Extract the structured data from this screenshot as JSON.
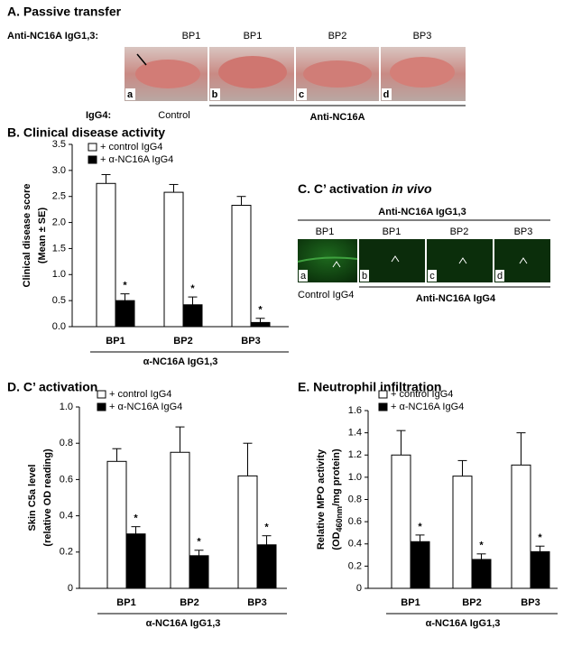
{
  "panel_a": {
    "title": "A. Passive transfer",
    "row_label": "Anti-NC16A IgG1,3:",
    "columns": [
      "BP1",
      "BP1",
      "BP2",
      "BP3"
    ],
    "letters": [
      "a",
      "b",
      "c",
      "d"
    ],
    "igg4_label": "IgG4:",
    "control": "Control",
    "group": "Anti-NC16A"
  },
  "panel_c": {
    "title": "C. C’ activation",
    "title_italic": "in vivo",
    "header": "Anti-NC16A IgG1,3",
    "columns": [
      "BP1",
      "BP1",
      "BP2",
      "BP3"
    ],
    "letters": [
      "a",
      "b",
      "c",
      "d"
    ],
    "control": "Control IgG4",
    "group": "Anti-NC16A IgG4"
  },
  "chart_data": [
    {
      "type": "bar",
      "title": "B. Clinical disease activity",
      "y_label": [
        "Clinical disease score",
        "(Mean ± SE)"
      ],
      "x_label": "α-NC16A IgG1,3",
      "categories": [
        "BP1",
        "BP2",
        "BP3"
      ],
      "series": [
        {
          "name": "+ control IgG4",
          "color": "#ffffff",
          "values": [
            2.75,
            2.58,
            2.33
          ],
          "errors": [
            0.17,
            0.15,
            0.17
          ]
        },
        {
          "name": "+ α-NC16A IgG4",
          "color": "#000000",
          "values": [
            0.5,
            0.42,
            0.08
          ],
          "errors": [
            0.13,
            0.15,
            0.08
          ],
          "annotations": [
            "*",
            "*",
            "*"
          ]
        }
      ],
      "ylim": [
        0,
        3.5
      ],
      "yticks": [
        {
          "value": 0,
          "label": "0.0"
        },
        0.5,
        {
          "value": 1,
          "label": "1.0"
        },
        1.5,
        {
          "value": 2,
          "label": "2.0"
        },
        2.5,
        {
          "value": 3,
          "label": "3.0"
        },
        3.5
      ]
    },
    {
      "type": "bar",
      "title": "D. C’ activation",
      "y_label": [
        "Skin C5a level",
        "(relative OD reading)"
      ],
      "x_label": "α-NC16A IgG1,3",
      "categories": [
        "BP1",
        "BP2",
        "BP3"
      ],
      "series": [
        {
          "name": "+ control IgG4",
          "color": "#ffffff",
          "values": [
            0.7,
            0.75,
            0.62
          ],
          "errors": [
            0.07,
            0.14,
            0.18
          ]
        },
        {
          "name": "+ α-NC16A IgG4",
          "color": "#000000",
          "values": [
            0.3,
            0.18,
            0.24
          ],
          "errors": [
            0.04,
            0.03,
            0.05
          ],
          "annotations": [
            "*",
            "*",
            "*"
          ]
        }
      ],
      "ylim": [
        0,
        1
      ],
      "yticks": [
        0,
        0.2,
        0.4,
        0.6,
        0.8,
        {
          "value": 1,
          "label": "1.0"
        }
      ]
    },
    {
      "type": "bar",
      "title": "E. Neutrophil infiltration",
      "y_label": [
        "Relative MPO activity",
        "(OD",
        "460nm",
        "/mg protein)"
      ],
      "x_label": "α-NC16A IgG1,3",
      "categories": [
        "BP1",
        "BP2",
        "BP3"
      ],
      "series": [
        {
          "name": "+ control IgG4",
          "color": "#ffffff",
          "values": [
            1.2,
            1.01,
            1.11
          ],
          "errors": [
            0.22,
            0.14,
            0.29
          ]
        },
        {
          "name": "+ α-NC16A IgG4",
          "color": "#000000",
          "values": [
            0.42,
            0.26,
            0.33
          ],
          "errors": [
            0.06,
            0.05,
            0.05
          ],
          "annotations": [
            "*",
            "*",
            "*"
          ]
        }
      ],
      "ylim": [
        0,
        1.6
      ],
      "yticks": [
        0,
        0.2,
        0.4,
        0.6,
        0.8,
        {
          "value": 1,
          "label": "1.0"
        },
        1.2,
        1.4,
        1.6
      ]
    }
  ]
}
